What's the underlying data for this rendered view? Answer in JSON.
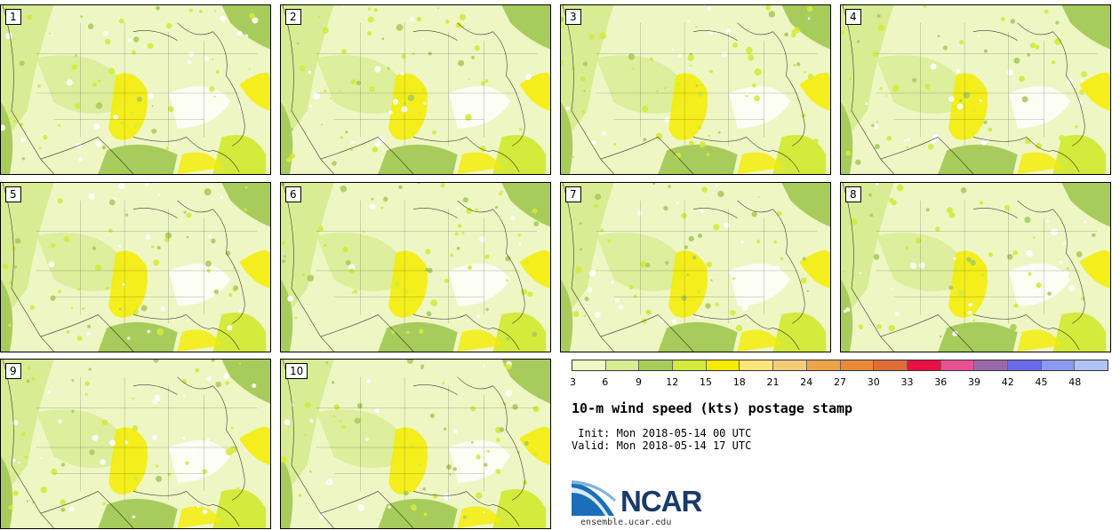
{
  "figure": {
    "title": "10-m wind speed (kts) postage stamp",
    "init_line": " Init: Mon 2018-05-14 00 UTC",
    "valid_line": "Valid: Mon 2018-05-14 17 UTC"
  },
  "panels": [
    {
      "label": "1"
    },
    {
      "label": "2"
    },
    {
      "label": "3"
    },
    {
      "label": "4"
    },
    {
      "label": "5"
    },
    {
      "label": "6"
    },
    {
      "label": "7"
    },
    {
      "label": "8"
    },
    {
      "label": "9"
    },
    {
      "label": "10"
    }
  ],
  "colorbar": {
    "ticks": [
      "3",
      "6",
      "9",
      "12",
      "15",
      "18",
      "21",
      "24",
      "27",
      "30",
      "33",
      "36",
      "39",
      "42",
      "45",
      "48"
    ],
    "colors": [
      "#f0f8c8",
      "#d8ec94",
      "#a8cc5c",
      "#d4ea3c",
      "#f4ec00",
      "#fae67a",
      "#f4cc78",
      "#eca448",
      "#e88a38",
      "#e06c38",
      "#e81044",
      "#e85094",
      "#9a6aa8",
      "#6a6aea",
      "#8a9af0",
      "#b0c4f4"
    ]
  },
  "branding": {
    "logo_text": "NCAR",
    "url": "ensemble.ucar.edu"
  }
}
